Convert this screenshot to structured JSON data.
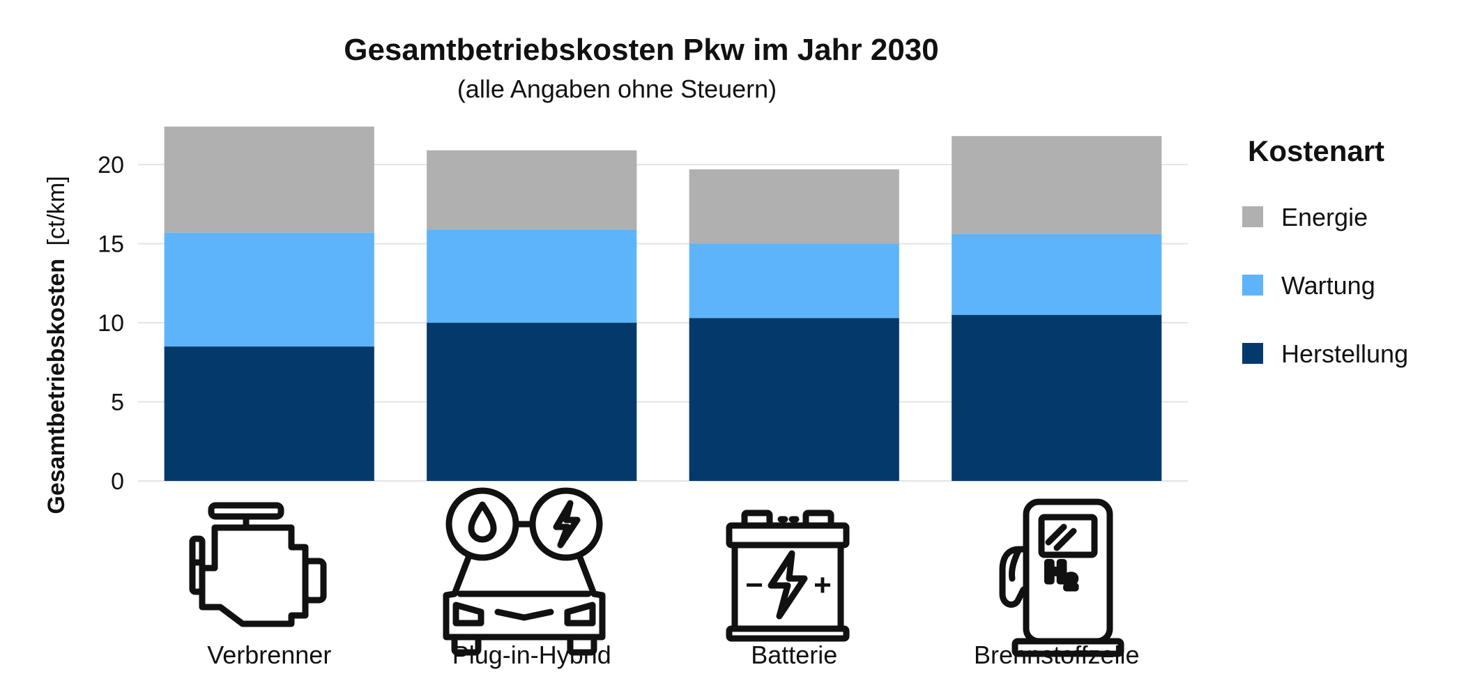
{
  "chart_data": {
    "type": "bar",
    "stacked": true,
    "title": "Gesamtbetriebskosten Pkw im Jahr 2030",
    "subtitle": "(alle Angaben ohne Steuern)",
    "ylabel": "Gesamtbetriebskosten",
    "yunit": "[ct/km]",
    "ylim": [
      0,
      23
    ],
    "yticks": [
      0,
      5,
      10,
      15,
      20
    ],
    "grid": true,
    "categories": [
      "Verbrenner",
      "Plug-in-Hybrid",
      "Batterie",
      "Brennstoffzelle"
    ],
    "category_icons": [
      "engine-icon",
      "hybrid-car-icon",
      "battery-icon",
      "hydrogen-pump-icon"
    ],
    "series": [
      {
        "name": "Herstellung",
        "color": "#043a6b",
        "values": [
          8.5,
          10.0,
          10.3,
          10.5
        ]
      },
      {
        "name": "Wartung",
        "color": "#5eb4fb",
        "values": [
          7.2,
          5.9,
          4.7,
          5.1
        ]
      },
      {
        "name": "Energie",
        "color": "#b0b0b0",
        "values": [
          6.7,
          5.0,
          4.7,
          6.2
        ]
      }
    ],
    "legend": {
      "title": "Kostenart",
      "placement": "right",
      "order": [
        "Energie",
        "Wartung",
        "Herstellung"
      ]
    }
  },
  "icon_labels": {
    "battery_minus": "−",
    "battery_plus": "+",
    "h2": "H",
    "h2_sub": "2"
  }
}
